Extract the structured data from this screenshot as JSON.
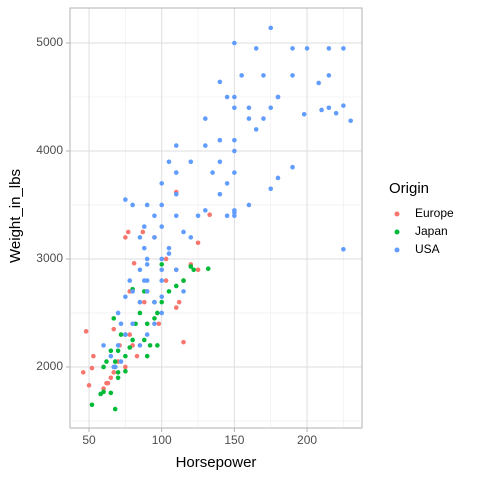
{
  "chart_data": {
    "type": "scatter",
    "x_label": "Horsepower",
    "y_label": "Weight_in_lbs",
    "legend_title": "Origin",
    "legend": "right",
    "grid": true,
    "xlim": [
      36.9,
      237.8
    ],
    "ylim": [
      1435,
      5324
    ],
    "xticks": [
      50,
      100,
      150,
      200
    ],
    "yticks": [
      2000,
      3000,
      4000,
      5000
    ],
    "x_minor_ticks": [
      75,
      125,
      175,
      225
    ],
    "y_minor_ticks": [
      1500,
      2500,
      3500,
      4500
    ],
    "series": [
      {
        "name": "Europe",
        "color": "#F8766D",
        "x": [
          46,
          48,
          52,
          53,
          50,
          60,
          62,
          65,
          67,
          63,
          70,
          75,
          71,
          78,
          80,
          67,
          83,
          88,
          90,
          95,
          98,
          103,
          110,
          112,
          110,
          115,
          115,
          120,
          125,
          125,
          133,
          103,
          95,
          77,
          75,
          87,
          110,
          78,
          85,
          81
        ],
        "y": [
          1950,
          2330,
          1990,
          2100,
          1830,
          1800,
          1850,
          1900,
          1950,
          1850,
          2050,
          2000,
          2200,
          2300,
          2200,
          2350,
          2100,
          2600,
          2700,
          2600,
          2400,
          2800,
          2900,
          2600,
          2550,
          2800,
          2230,
          2950,
          2900,
          3150,
          3410,
          3000,
          3200,
          3250,
          3200,
          3250,
          3620,
          2700,
          2600,
          2960
        ]
      },
      {
        "name": "Japan",
        "color": "#00BA38",
        "x": [
          52,
          60,
          68,
          65,
          70,
          68,
          65,
          62,
          70,
          75,
          75,
          70,
          72,
          78,
          80,
          82,
          88,
          90,
          92,
          90,
          95,
          97,
          100,
          105,
          110,
          115,
          100,
          120,
          132,
          122,
          67,
          85,
          88,
          97,
          75,
          60,
          58,
          80,
          95,
          68
        ],
        "y": [
          1650,
          1770,
          1610,
          1760,
          1900,
          2000,
          2150,
          2050,
          1950,
          1960,
          2100,
          2150,
          2300,
          2180,
          2250,
          2400,
          2250,
          2400,
          2200,
          2100,
          2600,
          2500,
          2600,
          2700,
          2750,
          2800,
          2950,
          2930,
          2910,
          2900,
          2450,
          2500,
          2700,
          2200,
          2300,
          2000,
          1750,
          2720,
          2450,
          2050
        ]
      },
      {
        "name": "USA",
        "color": "#619CFF",
        "x": [
          225,
          150,
          175,
          190,
          200,
          215,
          165,
          160,
          170,
          180,
          150,
          150,
          155,
          140,
          145,
          150,
          150,
          140,
          130,
          150,
          140,
          160,
          165,
          175,
          180,
          190,
          198,
          208,
          210,
          215,
          220,
          225,
          230,
          215,
          170,
          145,
          150,
          160,
          175,
          180,
          190,
          225,
          150,
          135,
          130,
          120,
          110,
          110,
          105,
          110,
          100,
          100,
          100,
          110,
          105,
          95,
          90,
          88,
          88,
          90,
          95,
          100,
          85,
          80,
          75,
          85,
          90,
          100,
          105,
          115,
          125,
          120,
          130,
          145,
          150,
          140,
          110,
          95,
          90,
          85,
          88,
          80,
          75,
          72,
          70,
          75,
          80,
          70,
          65,
          72,
          68,
          85,
          90,
          95,
          100,
          100,
          100,
          115,
          90,
          78,
          60,
          67
        ],
        "y": [
          4950,
          5000,
          5140,
          4950,
          4950,
          4950,
          4950,
          4300,
          4300,
          4500,
          4400,
          4500,
          4700,
          4640,
          4500,
          4100,
          4000,
          4100,
          4300,
          3800,
          3900,
          4400,
          4200,
          4400,
          4500,
          4700,
          4340,
          4630,
          4380,
          4400,
          4350,
          4420,
          4280,
          4700,
          4700,
          3700,
          3400,
          3500,
          3650,
          3750,
          3850,
          3090,
          3430,
          3800,
          4050,
          3900,
          4050,
          3600,
          3900,
          3800,
          3700,
          3500,
          3300,
          3400,
          3050,
          3400,
          3500,
          3300,
          3100,
          3000,
          3200,
          3000,
          3200,
          3500,
          3550,
          2900,
          2800,
          2900,
          3100,
          3250,
          3400,
          3200,
          3450,
          3400,
          3450,
          3600,
          2900,
          2600,
          2700,
          2600,
          2800,
          2700,
          2650,
          2400,
          2500,
          2300,
          2400,
          2200,
          2100,
          2050,
          2000,
          2200,
          2300,
          2400,
          2500,
          2650,
          2800,
          2700,
          2950,
          2800,
          2200,
          2000
        ]
      }
    ]
  }
}
